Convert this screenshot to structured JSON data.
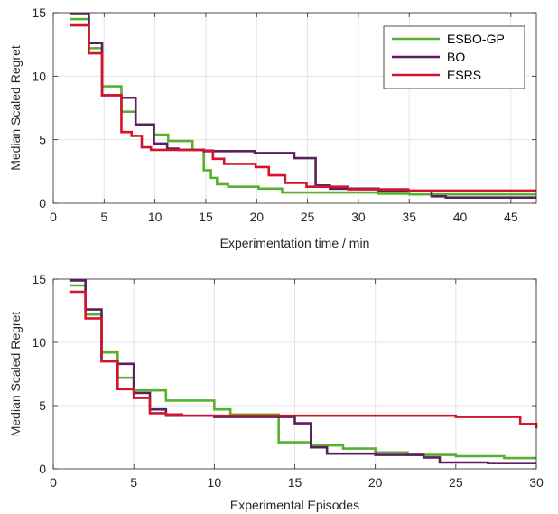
{
  "colors": {
    "ESBO-GP": "#58b030",
    "BO": "#5a1f5e",
    "ESRS": "#d4142c",
    "grid": "#e4e4e4",
    "axis": "#262626"
  },
  "chart_data": [
    {
      "type": "line",
      "step": true,
      "xlabel": "Experimentation time / min",
      "ylabel": "Median Scaled Regret",
      "xlim": [
        0,
        47.5
      ],
      "ylim": [
        0,
        15
      ],
      "xticks": [
        0,
        5,
        10,
        15,
        20,
        25,
        30,
        35,
        40,
        45
      ],
      "yticks": [
        0,
        5,
        10,
        15
      ],
      "grid": true,
      "legend": {
        "position": "top-right",
        "entries": [
          "ESBO-GP",
          "BO",
          "ESRS"
        ]
      },
      "series": [
        {
          "name": "ESBO-GP",
          "x": [
            1.6,
            3.5,
            4.8,
            6.7,
            8.1,
            9.9,
            11.3,
            13.7,
            14.8,
            15.5,
            16.1,
            17.2,
            20.2,
            22.5,
            28,
            32,
            35,
            47.5
          ],
          "y": [
            14.5,
            12.2,
            9.2,
            7.2,
            6.2,
            5.4,
            4.9,
            4.2,
            2.6,
            2.0,
            1.5,
            1.3,
            1.15,
            0.85,
            0.85,
            0.75,
            0.7,
            0.7
          ]
        },
        {
          "name": "BO",
          "x": [
            1.6,
            3.5,
            4.8,
            6.7,
            8.1,
            9.9,
            11.2,
            12.3,
            14.8,
            19.8,
            23.7,
            25.8,
            27.2,
            32,
            37.2,
            38.6,
            47.5
          ],
          "y": [
            14.9,
            12.6,
            8.5,
            8.3,
            6.2,
            4.7,
            4.3,
            4.2,
            4.1,
            3.95,
            3.55,
            1.4,
            1.15,
            0.95,
            0.55,
            0.45,
            0.45
          ]
        },
        {
          "name": "ESRS",
          "x": [
            1.6,
            3.5,
            4.8,
            6.7,
            7.7,
            8.7,
            9.6,
            14.8,
            15.7,
            16.8,
            19.9,
            21.2,
            22.8,
            24.9,
            29,
            34.9,
            47.5
          ],
          "y": [
            14.0,
            11.8,
            8.5,
            5.6,
            5.3,
            4.4,
            4.2,
            4.15,
            3.5,
            3.1,
            2.85,
            2.2,
            1.6,
            1.3,
            1.1,
            1.0,
            1.0
          ]
        }
      ]
    },
    {
      "type": "line",
      "step": true,
      "xlabel": "Experimental Episodes",
      "ylabel": "Median Scaled Regret",
      "xlim": [
        0,
        30
      ],
      "ylim": [
        0,
        15
      ],
      "xticks": [
        0,
        5,
        10,
        15,
        20,
        25,
        30
      ],
      "yticks": [
        0,
        5,
        10,
        15
      ],
      "grid": true,
      "series": [
        {
          "name": "ESBO-GP",
          "x": [
            1,
            2,
            3,
            4,
            5,
            7,
            10,
            11,
            14,
            16,
            18,
            20,
            22,
            25,
            28,
            30
          ],
          "y": [
            14.5,
            12.2,
            9.2,
            7.2,
            6.2,
            5.4,
            4.7,
            4.3,
            2.1,
            1.85,
            1.6,
            1.3,
            1.1,
            1.0,
            0.85,
            0.85
          ]
        },
        {
          "name": "BO",
          "x": [
            1,
            2,
            3,
            4,
            5,
            6,
            7,
            10,
            15,
            16,
            17,
            20,
            23,
            24,
            27,
            30
          ],
          "y": [
            14.9,
            12.6,
            8.5,
            8.3,
            6.0,
            4.7,
            4.2,
            4.1,
            3.6,
            1.7,
            1.2,
            1.1,
            0.9,
            0.5,
            0.45,
            0.45
          ]
        },
        {
          "name": "ESRS",
          "x": [
            1,
            2,
            3,
            4,
            5,
            6,
            7,
            8,
            25,
            29,
            30
          ],
          "y": [
            14.0,
            11.9,
            8.5,
            6.3,
            5.6,
            4.4,
            4.3,
            4.2,
            4.1,
            3.55,
            3.2
          ]
        }
      ]
    }
  ]
}
